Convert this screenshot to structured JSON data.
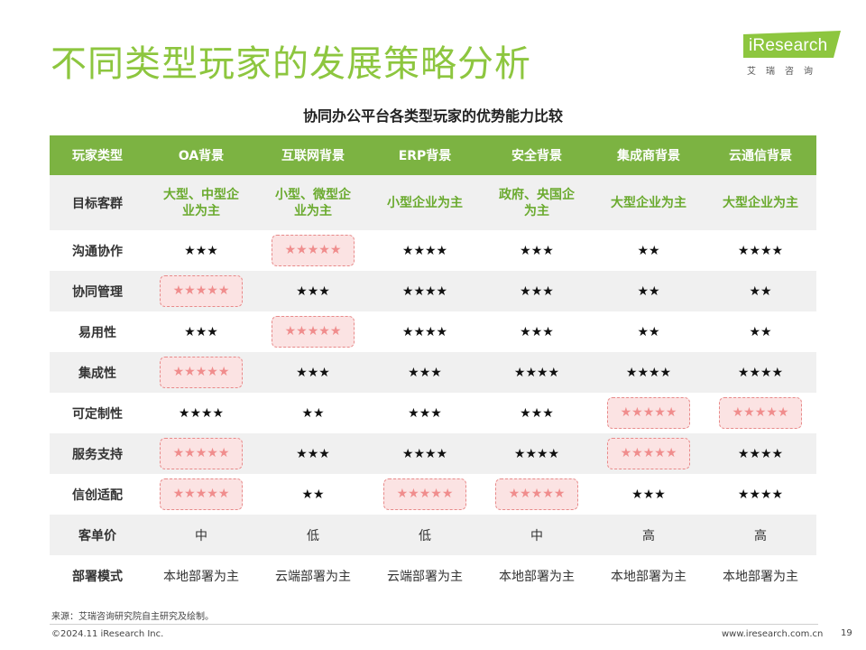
{
  "page": {
    "title": "不同类型玩家的发展策略分析",
    "subtitle": "协同办公平台各类型玩家的优势能力比较"
  },
  "logo": {
    "word": "iResearch",
    "sub": "艾瑞咨询",
    "color": "#8dc63f"
  },
  "table": {
    "header": [
      "玩家类型",
      "OA背景",
      "互联网背景",
      "ERP背景",
      "安全背景",
      "集成商背景",
      "云通信背景"
    ],
    "rows": [
      {
        "label": "目标客群",
        "kind": "text-green",
        "cells": [
          {
            "v": "大型、中型企业为主"
          },
          {
            "v": "小型、微型企业为主"
          },
          {
            "v": "小型企业为主"
          },
          {
            "v": "政府、央国企为主"
          },
          {
            "v": "大型企业为主"
          },
          {
            "v": "大型企业为主"
          }
        ]
      },
      {
        "label": "沟通协作",
        "kind": "stars",
        "cells": [
          {
            "v": "★★★",
            "n": 3
          },
          {
            "v": "★★★★★",
            "n": 5,
            "hl": true
          },
          {
            "v": "★★★★",
            "n": 4
          },
          {
            "v": "★★★",
            "n": 3
          },
          {
            "v": "★★",
            "n": 2
          },
          {
            "v": "★★★★",
            "n": 4
          }
        ]
      },
      {
        "label": "协同管理",
        "kind": "stars",
        "cells": [
          {
            "v": "★★★★★",
            "n": 5,
            "hl": true
          },
          {
            "v": "★★★",
            "n": 3
          },
          {
            "v": "★★★★",
            "n": 4
          },
          {
            "v": "★★★",
            "n": 3
          },
          {
            "v": "★★",
            "n": 2
          },
          {
            "v": "★★",
            "n": 2
          }
        ]
      },
      {
        "label": "易用性",
        "kind": "stars",
        "cells": [
          {
            "v": "★★★",
            "n": 3
          },
          {
            "v": "★★★★★",
            "n": 5,
            "hl": true
          },
          {
            "v": "★★★★",
            "n": 4
          },
          {
            "v": "★★★",
            "n": 3
          },
          {
            "v": "★★",
            "n": 2
          },
          {
            "v": "★★",
            "n": 2
          }
        ]
      },
      {
        "label": "集成性",
        "kind": "stars",
        "cells": [
          {
            "v": "★★★★★",
            "n": 5,
            "hl": true
          },
          {
            "v": "★★★",
            "n": 3
          },
          {
            "v": "★★★",
            "n": 3
          },
          {
            "v": "★★★★",
            "n": 4
          },
          {
            "v": "★★★★",
            "n": 4
          },
          {
            "v": "★★★★",
            "n": 4
          }
        ]
      },
      {
        "label": "可定制性",
        "kind": "stars",
        "cells": [
          {
            "v": "★★★★",
            "n": 4
          },
          {
            "v": "★★",
            "n": 2
          },
          {
            "v": "★★★",
            "n": 3
          },
          {
            "v": "★★★",
            "n": 3
          },
          {
            "v": "★★★★★",
            "n": 5,
            "hl": true
          },
          {
            "v": "★★★★★",
            "n": 5,
            "hl": true
          }
        ]
      },
      {
        "label": "服务支持",
        "kind": "stars",
        "cells": [
          {
            "v": "★★★★★",
            "n": 5,
            "hl": true
          },
          {
            "v": "★★★",
            "n": 3
          },
          {
            "v": "★★★★",
            "n": 4
          },
          {
            "v": "★★★★",
            "n": 4
          },
          {
            "v": "★★★★★",
            "n": 5,
            "hl": true
          },
          {
            "v": "★★★★",
            "n": 4
          }
        ]
      },
      {
        "label": "信创适配",
        "kind": "stars",
        "cells": [
          {
            "v": "★★★★★",
            "n": 5,
            "hl": true
          },
          {
            "v": "★★",
            "n": 2
          },
          {
            "v": "★★★★★",
            "n": 5,
            "hl": true
          },
          {
            "v": "★★★★★",
            "n": 5,
            "hl": true
          },
          {
            "v": "★★★",
            "n": 3
          },
          {
            "v": "★★★★",
            "n": 4
          }
        ]
      },
      {
        "label": "客单价",
        "kind": "text",
        "cells": [
          {
            "v": "中"
          },
          {
            "v": "低"
          },
          {
            "v": "低"
          },
          {
            "v": "中"
          },
          {
            "v": "高"
          },
          {
            "v": "高"
          }
        ]
      },
      {
        "label": "部署模式",
        "kind": "text",
        "cells": [
          {
            "v": "本地部署为主"
          },
          {
            "v": "云端部署为主"
          },
          {
            "v": "云端部署为主"
          },
          {
            "v": "本地部署为主"
          },
          {
            "v": "本地部署为主"
          },
          {
            "v": "本地部署为主"
          }
        ]
      }
    ]
  },
  "footer": {
    "source": "来源：艾瑞咨询研究院自主研究及绘制。",
    "copyright": "©2024.11 iResearch Inc.",
    "site": "www.iresearch.com.cn",
    "page_number": "19"
  },
  "colors": {
    "accent_green": "#8dc63f",
    "header_green": "#7cb342",
    "highlight_fill": "#fbe3e3",
    "highlight_star": "#f08d8d"
  }
}
